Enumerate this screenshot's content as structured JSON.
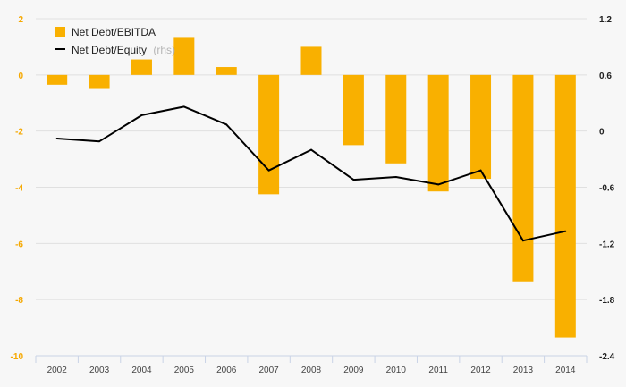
{
  "chart_data": {
    "type": "bar",
    "categories": [
      "2002",
      "2003",
      "2004",
      "2005",
      "2006",
      "2007",
      "2008",
      "2009",
      "2010",
      "2011",
      "2012",
      "2013",
      "2014"
    ],
    "series": [
      {
        "name": "Net Debt/EBITDA",
        "type": "bar",
        "axis": "left",
        "color": "#f9b000",
        "values": [
          -0.35,
          -0.5,
          0.55,
          1.35,
          0.28,
          -4.25,
          1.0,
          -2.5,
          -3.15,
          -4.15,
          -3.7,
          -7.35,
          -9.35
        ]
      },
      {
        "name": "Net Debt/Equity",
        "type": "line",
        "axis": "right",
        "color": "#000000",
        "values": [
          -0.08,
          -0.11,
          0.17,
          0.26,
          0.07,
          -0.42,
          -0.2,
          -0.52,
          -0.49,
          -0.57,
          -0.42,
          -1.17,
          -1.07
        ]
      }
    ],
    "legend": {
      "position": "top-left",
      "items": [
        {
          "label": "Net Debt/EBITDA",
          "note": "",
          "color": "#f9b000",
          "marker": "square"
        },
        {
          "label": "Net Debt/Equity",
          "note": "(rhs)",
          "color": "#000000",
          "marker": "line"
        }
      ]
    },
    "y_left": {
      "ylim": [
        -10,
        2
      ],
      "ticks": [
        2,
        0,
        -2,
        -4,
        -6,
        -8,
        -10
      ],
      "tick_labels": [
        "2",
        "0",
        "-2",
        "-4",
        "-6",
        "-8",
        "-10"
      ],
      "label_color": "#f5a800"
    },
    "y_right": {
      "ylim": [
        -2.4,
        1.2
      ],
      "ticks": [
        1.2,
        0.6,
        0,
        -0.6,
        -1.2,
        -1.8,
        -2.4
      ],
      "tick_labels": [
        "1.2",
        "0.6",
        "0",
        "-0.6",
        "-1.2",
        "-1.8",
        "-2.4"
      ],
      "label_color": "#222222"
    },
    "grid": true,
    "title": "",
    "xlabel": "",
    "ylabel": ""
  }
}
